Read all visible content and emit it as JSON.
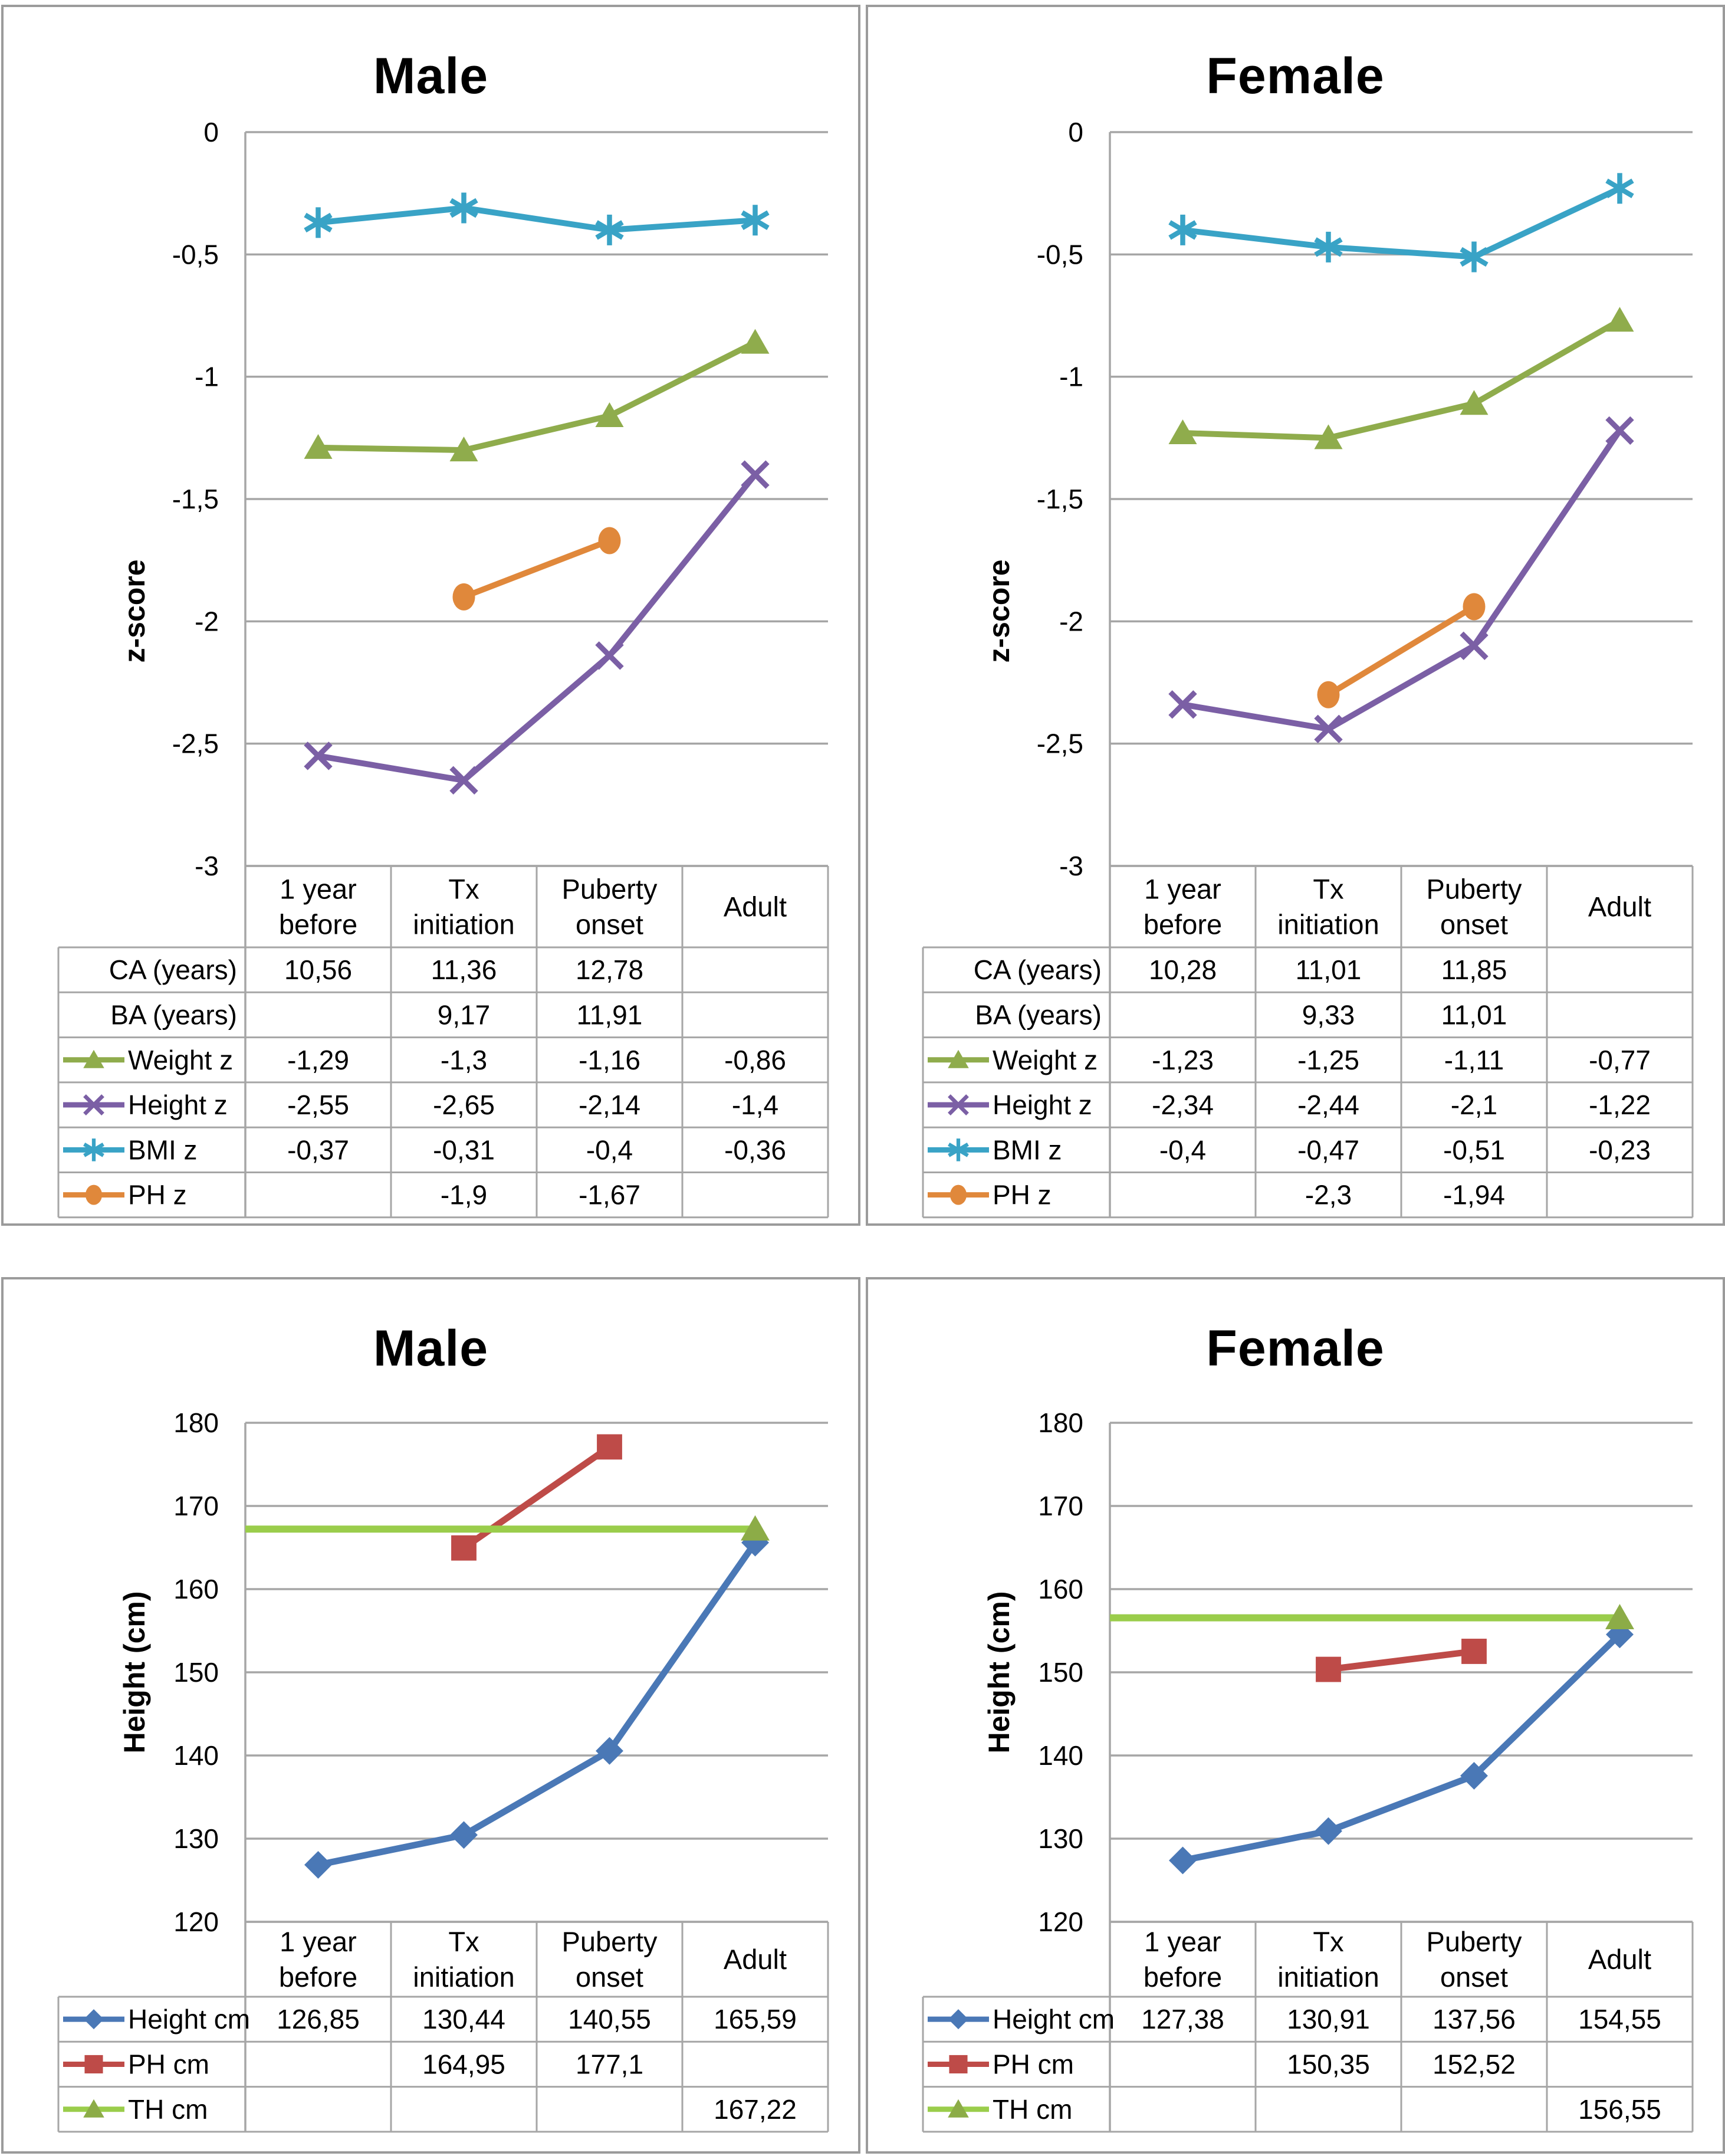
{
  "palette": {
    "grid": "#A6A6A6",
    "axis": "#A6A6A6",
    "table_border": "#A6A6A6",
    "panel_border": "#9B9B9B",
    "text": "#000000",
    "weight_green": "#8FAC4C",
    "height_purple": "#7B5FA5",
    "bmi_teal": "#39A3C6",
    "ph_orange": "#E0883B",
    "height_blue": "#4A78B6",
    "ph_red": "#BE4B48",
    "th_green": "#9ACD4B",
    "th_marker_green": "#8CAC47"
  },
  "chart_data": [
    {
      "type": "line",
      "title": "Male",
      "ylabel": "z-score",
      "ylim": [
        -3,
        0
      ],
      "grid": true,
      "legend_position": "table-left",
      "categories": [
        "1 year before",
        "Tx initiation",
        "Puberty onset",
        "Adult"
      ],
      "yticks": [
        {
          "v": 0,
          "label": "0"
        },
        {
          "v": -0.5,
          "label": "-0,5"
        },
        {
          "v": -1,
          "label": "-1"
        },
        {
          "v": -1.5,
          "label": "-1,5"
        },
        {
          "v": -2,
          "label": "-2"
        },
        {
          "v": -2.5,
          "label": "-2,5"
        },
        {
          "v": -3,
          "label": "-3"
        }
      ],
      "series": [
        {
          "name": "Weight z",
          "color": "#8FAC4C",
          "marker": "triangle",
          "values": [
            -1.29,
            -1.3,
            -1.16,
            -0.86
          ]
        },
        {
          "name": "Height z",
          "color": "#7B5FA5",
          "marker": "x",
          "values": [
            -2.55,
            -2.65,
            -2.14,
            -1.4
          ]
        },
        {
          "name": "BMI z",
          "color": "#39A3C6",
          "marker": "asterisk",
          "values": [
            -0.37,
            -0.31,
            -0.4,
            -0.36
          ]
        },
        {
          "name": "PH z",
          "color": "#E0883B",
          "marker": "circle",
          "values": [
            null,
            -1.9,
            -1.67,
            null
          ]
        }
      ],
      "table": {
        "rows": [
          {
            "label": "CA (years)",
            "series": null,
            "cells": [
              "10,56",
              "11,36",
              "12,78",
              ""
            ]
          },
          {
            "label": "BA (years)",
            "series": null,
            "cells": [
              "",
              "9,17",
              "11,91",
              ""
            ]
          },
          {
            "label": "Weight z",
            "series": 0,
            "cells": [
              "-1,29",
              "-1,3",
              "-1,16",
              "-0,86"
            ]
          },
          {
            "label": "Height z",
            "series": 1,
            "cells": [
              "-2,55",
              "-2,65",
              "-2,14",
              "-1,4"
            ]
          },
          {
            "label": "BMI z",
            "series": 2,
            "cells": [
              "-0,37",
              "-0,31",
              "-0,4",
              "-0,36"
            ]
          },
          {
            "label": "PH z",
            "series": 3,
            "cells": [
              "",
              "-1,9",
              "-1,67",
              ""
            ]
          }
        ]
      }
    },
    {
      "type": "line",
      "title": "Female",
      "ylabel": "z-score",
      "ylim": [
        -3,
        0
      ],
      "grid": true,
      "legend_position": "table-left",
      "categories": [
        "1 year before",
        "Tx initiation",
        "Puberty onset",
        "Adult"
      ],
      "yticks": [
        {
          "v": 0,
          "label": "0"
        },
        {
          "v": -0.5,
          "label": "-0,5"
        },
        {
          "v": -1,
          "label": "-1"
        },
        {
          "v": -1.5,
          "label": "-1,5"
        },
        {
          "v": -2,
          "label": "-2"
        },
        {
          "v": -2.5,
          "label": "-2,5"
        },
        {
          "v": -3,
          "label": "-3"
        }
      ],
      "series": [
        {
          "name": "Weight z",
          "color": "#8FAC4C",
          "marker": "triangle",
          "values": [
            -1.23,
            -1.25,
            -1.11,
            -0.77
          ]
        },
        {
          "name": "Height z",
          "color": "#7B5FA5",
          "marker": "x",
          "values": [
            -2.34,
            -2.44,
            -2.1,
            -1.22
          ]
        },
        {
          "name": "BMI z",
          "color": "#39A3C6",
          "marker": "asterisk",
          "values": [
            -0.4,
            -0.47,
            -0.51,
            -0.23
          ]
        },
        {
          "name": "PH z",
          "color": "#E0883B",
          "marker": "circle",
          "values": [
            null,
            -2.3,
            -1.94,
            null
          ]
        }
      ],
      "table": {
        "rows": [
          {
            "label": "CA (years)",
            "series": null,
            "cells": [
              "10,28",
              "11,01",
              "11,85",
              ""
            ]
          },
          {
            "label": "BA (years)",
            "series": null,
            "cells": [
              "",
              "9,33",
              "11,01",
              ""
            ]
          },
          {
            "label": "Weight z",
            "series": 0,
            "cells": [
              "-1,23",
              "-1,25",
              "-1,11",
              "-0,77"
            ]
          },
          {
            "label": "Height z",
            "series": 1,
            "cells": [
              "-2,34",
              "-2,44",
              "-2,1",
              "-1,22"
            ]
          },
          {
            "label": "BMI z",
            "series": 2,
            "cells": [
              "-0,4",
              "-0,47",
              "-0,51",
              "-0,23"
            ]
          },
          {
            "label": "PH z",
            "series": 3,
            "cells": [
              "",
              "-2,3",
              "-1,94",
              ""
            ]
          }
        ]
      }
    },
    {
      "type": "line",
      "title": "Male",
      "ylabel": "Height (cm)",
      "ylim": [
        120,
        180
      ],
      "grid": true,
      "legend_position": "table-left",
      "categories": [
        "1 year before",
        "Tx initiation",
        "Puberty onset",
        "Adult"
      ],
      "yticks": [
        {
          "v": 180,
          "label": "180"
        },
        {
          "v": 170,
          "label": "170"
        },
        {
          "v": 160,
          "label": "160"
        },
        {
          "v": 150,
          "label": "150"
        },
        {
          "v": 140,
          "label": "140"
        },
        {
          "v": 130,
          "label": "130"
        },
        {
          "v": 120,
          "label": "120"
        }
      ],
      "series": [
        {
          "name": "Height cm",
          "color": "#4A78B6",
          "marker": "diamond",
          "values": [
            126.85,
            130.44,
            140.55,
            165.59
          ]
        },
        {
          "name": "PH cm",
          "color": "#BE4B48",
          "marker": "square",
          "values": [
            null,
            164.95,
            177.1,
            null
          ]
        },
        {
          "name": "TH cm",
          "color": "#9ACD4B",
          "marker": "triangle",
          "marker_color": "#8CAC47",
          "hline_from_axis": true,
          "values": [
            null,
            null,
            null,
            167.22
          ]
        }
      ],
      "table": {
        "rows": [
          {
            "label": "Height cm",
            "series": 0,
            "cells": [
              "126,85",
              "130,44",
              "140,55",
              "165,59"
            ]
          },
          {
            "label": "PH cm",
            "series": 1,
            "cells": [
              "",
              "164,95",
              "177,1",
              ""
            ]
          },
          {
            "label": "TH cm",
            "series": 2,
            "cells": [
              "",
              "",
              "",
              "167,22"
            ]
          }
        ]
      }
    },
    {
      "type": "line",
      "title": "Female",
      "ylabel": "Height (cm)",
      "ylim": [
        120,
        180
      ],
      "grid": true,
      "legend_position": "table-left",
      "categories": [
        "1 year before",
        "Tx initiation",
        "Puberty onset",
        "Adult"
      ],
      "yticks": [
        {
          "v": 180,
          "label": "180"
        },
        {
          "v": 170,
          "label": "170"
        },
        {
          "v": 160,
          "label": "160"
        },
        {
          "v": 150,
          "label": "150"
        },
        {
          "v": 140,
          "label": "140"
        },
        {
          "v": 130,
          "label": "130"
        },
        {
          "v": 120,
          "label": "120"
        }
      ],
      "series": [
        {
          "name": "Height cm",
          "color": "#4A78B6",
          "marker": "diamond",
          "values": [
            127.38,
            130.91,
            137.56,
            154.55
          ]
        },
        {
          "name": "PH cm",
          "color": "#BE4B48",
          "marker": "square",
          "values": [
            null,
            150.35,
            152.52,
            null
          ]
        },
        {
          "name": "TH cm",
          "color": "#9ACD4B",
          "marker": "triangle",
          "marker_color": "#8CAC47",
          "hline_from_axis": true,
          "values": [
            null,
            null,
            null,
            156.55
          ]
        }
      ],
      "table": {
        "rows": [
          {
            "label": "Height cm",
            "series": 0,
            "cells": [
              "127,38",
              "130,91",
              "137,56",
              "154,55"
            ]
          },
          {
            "label": "PH cm",
            "series": 1,
            "cells": [
              "",
              "150,35",
              "152,52",
              ""
            ]
          },
          {
            "label": "TH cm",
            "series": 2,
            "cells": [
              "",
              "",
              "",
              "156,55"
            ]
          }
        ]
      }
    }
  ]
}
